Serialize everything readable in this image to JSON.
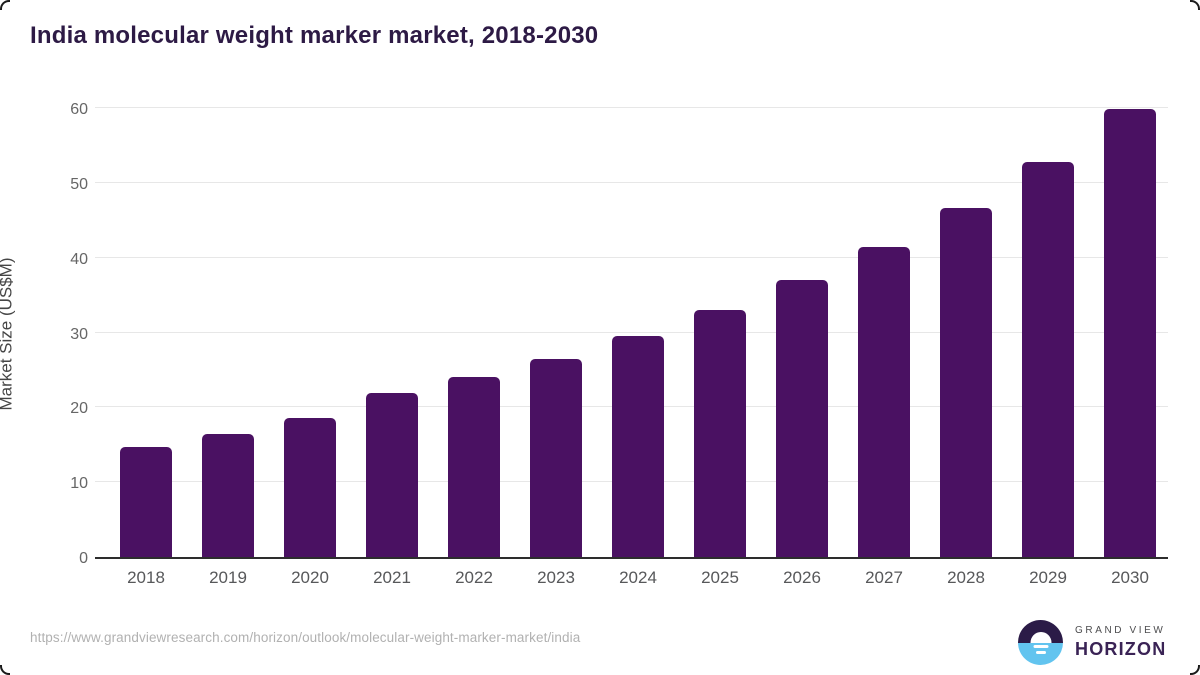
{
  "header": {
    "title": "India molecular weight marker market, 2018-2030"
  },
  "chart_data": {
    "type": "bar",
    "title": "India molecular weight marker market, 2018-2030",
    "categories": [
      "2018",
      "2019",
      "2020",
      "2021",
      "2022",
      "2023",
      "2024",
      "2025",
      "2026",
      "2027",
      "2028",
      "2029",
      "2030"
    ],
    "values": [
      14.7,
      16.4,
      18.6,
      21.9,
      24.0,
      26.5,
      29.6,
      33.0,
      37.0,
      41.4,
      46.6,
      52.8,
      59.9
    ],
    "series_name": "Market Size (US$M)",
    "ylabel": "Market Size (US$M)",
    "ylim": [
      0,
      60
    ],
    "yticks": [
      0,
      10,
      20,
      30,
      40,
      50,
      60
    ],
    "grid": true,
    "legend": false,
    "bar_color": "#4a1162"
  },
  "footer": {
    "source_url": "https://www.grandviewresearch.com/horizon/outlook/molecular-weight-marker-market/india",
    "logo": {
      "top_text": "GRAND VIEW",
      "bottom_text": "HORIZON"
    }
  },
  "colors": {
    "bar": "#4a1162",
    "title_text": "#2d1a45",
    "gridline": "#e7e7e7",
    "axis_line": "#2d2d2d",
    "tick_text": "#666666",
    "xlabel_text": "#57585a",
    "source_text": "#b1b1b1",
    "logo_dark": "#2b1b47",
    "logo_blue": "#62c4ef"
  }
}
